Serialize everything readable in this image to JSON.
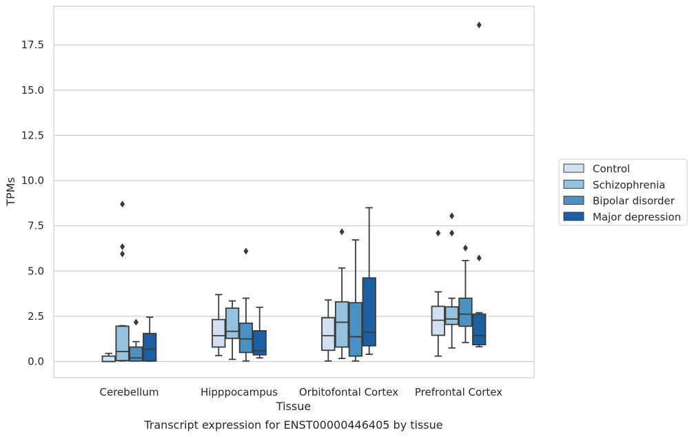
{
  "caption": "Transcript expression for ENST00000446405 by tissue",
  "chart_data": {
    "type": "box",
    "xlabel": "Tissue",
    "ylabel": "TPMs",
    "ylim": [
      -0.9,
      19.5
    ],
    "yticks": [
      "0.0",
      "2.5",
      "5.0",
      "7.5",
      "10.0",
      "12.5",
      "15.0",
      "17.5"
    ],
    "grid": "horizontal",
    "legend_position": "right",
    "categories": [
      "Cerebellum",
      "Hipppocampus",
      "Orbitofontal Cortex",
      "Prefrontal Cortex"
    ],
    "colors": {
      "Control": "#d1e1f1",
      "Schizophrenia": "#95c2df",
      "Bipolar disorder": "#4b91c3",
      "Major depression": "#1c5fa3",
      "line": "#3a3a3a",
      "grid": "#cccccc",
      "frame": "#cccccc"
    },
    "series": [
      {
        "name": "Control",
        "boxes": [
          {
            "whislo": 0.0,
            "q1": 0.0,
            "med": 0.0,
            "q3": 0.3,
            "whishi": 0.45,
            "fliers": []
          },
          {
            "whislo": 0.33,
            "q1": 0.8,
            "med": 1.43,
            "q3": 2.32,
            "whishi": 3.7,
            "fliers": []
          },
          {
            "whislo": 0.03,
            "q1": 0.62,
            "med": 1.43,
            "q3": 2.42,
            "whishi": 3.4,
            "fliers": []
          },
          {
            "whislo": 0.3,
            "q1": 1.45,
            "med": 2.28,
            "q3": 3.05,
            "whishi": 3.85,
            "fliers": [
              7.1
            ]
          }
        ]
      },
      {
        "name": "Schizophrenia",
        "boxes": [
          {
            "whislo": 0.03,
            "q1": 0.05,
            "med": 0.55,
            "q3": 1.95,
            "whishi": 1.98,
            "fliers": [
              5.95,
              6.35,
              8.7
            ]
          },
          {
            "whislo": 0.12,
            "q1": 1.28,
            "med": 1.67,
            "q3": 2.95,
            "whishi": 3.35,
            "fliers": []
          },
          {
            "whislo": 0.17,
            "q1": 0.8,
            "med": 2.17,
            "q3": 3.3,
            "whishi": 5.17,
            "fliers": [
              7.17
            ]
          },
          {
            "whislo": 0.75,
            "q1": 2.05,
            "med": 2.35,
            "q3": 3.02,
            "whishi": 3.5,
            "fliers": [
              7.1,
              8.05
            ]
          }
        ]
      },
      {
        "name": "Bipolar disorder",
        "boxes": [
          {
            "whislo": 0.03,
            "q1": 0.03,
            "med": 0.2,
            "q3": 0.8,
            "whishi": 1.1,
            "fliers": [
              2.17
            ]
          },
          {
            "whislo": 0.03,
            "q1": 0.5,
            "med": 1.25,
            "q3": 2.12,
            "whishi": 3.5,
            "fliers": [
              6.1
            ]
          },
          {
            "whislo": 0.03,
            "q1": 0.3,
            "med": 1.37,
            "q3": 3.25,
            "whishi": 6.72,
            "fliers": []
          },
          {
            "whislo": 1.05,
            "q1": 1.95,
            "med": 2.62,
            "q3": 3.5,
            "whishi": 5.58,
            "fliers": [
              6.27
            ]
          }
        ]
      },
      {
        "name": "Major depression",
        "boxes": [
          {
            "whislo": 0.02,
            "q1": 0.03,
            "med": 0.68,
            "q3": 1.55,
            "whishi": 2.45,
            "fliers": []
          },
          {
            "whislo": 0.2,
            "q1": 0.37,
            "med": 0.6,
            "q3": 1.7,
            "whishi": 3.0,
            "fliers": []
          },
          {
            "whislo": 0.4,
            "q1": 0.87,
            "med": 1.62,
            "q3": 4.62,
            "whishi": 8.5,
            "fliers": []
          },
          {
            "whislo": 0.82,
            "q1": 0.93,
            "med": 1.43,
            "q3": 2.62,
            "whishi": 2.7,
            "fliers": [
              5.72,
              18.6
            ]
          }
        ]
      }
    ]
  }
}
